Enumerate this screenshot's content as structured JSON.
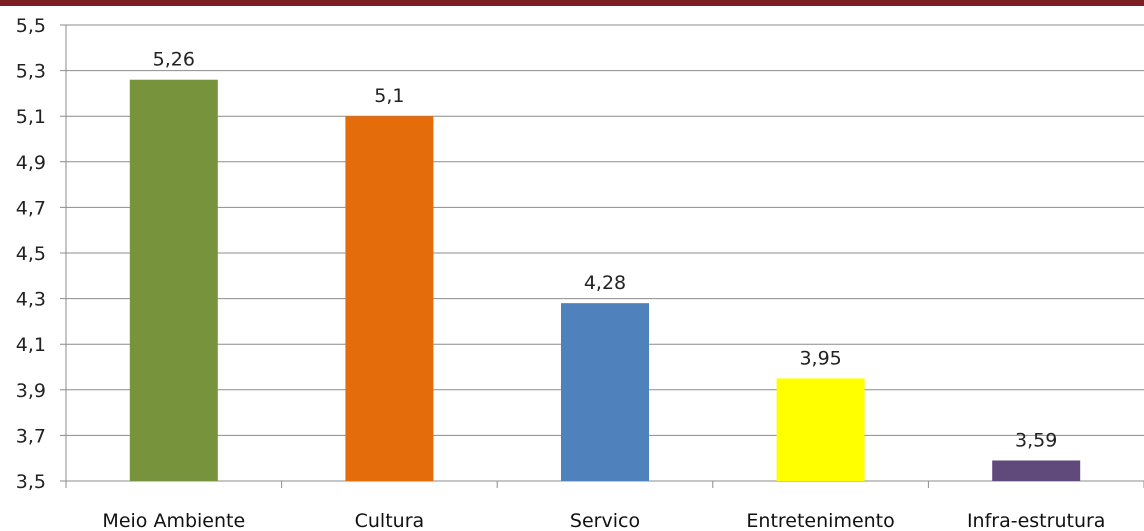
{
  "chart_data": {
    "type": "bar",
    "categories": [
      "Meio Ambiente",
      "Cultura",
      "Servico",
      "Entretenimento",
      "Infra-estrutura"
    ],
    "values": [
      5.26,
      5.1,
      4.28,
      3.95,
      3.59
    ],
    "data_labels": [
      "5,26",
      "5,1",
      "4,28",
      "3,95",
      "3,59"
    ],
    "colors": [
      "#77933c",
      "#e46c0a",
      "#4f81bd",
      "#ffff00",
      "#604a7b"
    ],
    "ylim": [
      3.5,
      5.5
    ],
    "yticks": [
      3.5,
      3.7,
      3.9,
      4.1,
      4.3,
      4.5,
      4.7,
      4.9,
      5.1,
      5.3,
      5.5
    ],
    "ytick_labels": [
      "3,5",
      "3,7",
      "3,9",
      "4,1",
      "4,3",
      "4,5",
      "4,7",
      "4,9",
      "5,1",
      "5,3",
      "5,5"
    ],
    "grid": true,
    "legend": "none"
  }
}
